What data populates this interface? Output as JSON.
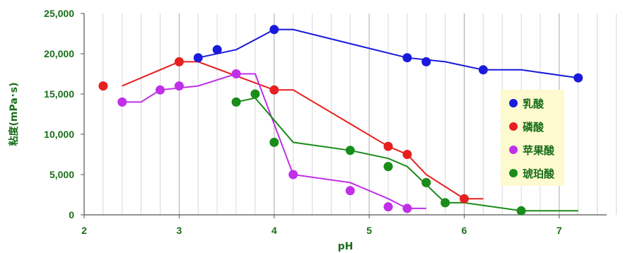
{
  "chart_data": {
    "type": "scatter",
    "xlabel": "pH",
    "ylabel": "粘度(mPa･s)",
    "xlim": [
      2,
      7.5
    ],
    "ylim": [
      0,
      25000
    ],
    "x_ticks": [
      "2",
      "3",
      "4",
      "5",
      "6",
      "7"
    ],
    "y_ticks": [
      "0",
      "5,000",
      "10,000",
      "15,000",
      "20,000",
      "25,000"
    ],
    "grid": "vertical",
    "legend_position": "right",
    "series": [
      {
        "name": "乳酸",
        "color": "#1a1adc",
        "points": [
          [
            3.2,
            19500
          ],
          [
            3.4,
            20500
          ],
          [
            4.0,
            23000
          ],
          [
            5.4,
            19500
          ],
          [
            5.6,
            19000
          ],
          [
            6.2,
            18000
          ],
          [
            7.2,
            17000
          ]
        ],
        "line": [
          [
            3.2,
            19500
          ],
          [
            3.6,
            20500
          ],
          [
            4.0,
            23000
          ],
          [
            4.2,
            23000
          ],
          [
            5.4,
            19500
          ],
          [
            5.8,
            19000
          ],
          [
            6.2,
            18000
          ],
          [
            6.6,
            18000
          ],
          [
            7.2,
            17000
          ]
        ]
      },
      {
        "name": "磷酸",
        "color": "#e62020",
        "points": [
          [
            2.2,
            16000
          ],
          [
            3.0,
            19000
          ],
          [
            4.0,
            15500
          ],
          [
            5.2,
            8500
          ],
          [
            5.4,
            7500
          ],
          [
            5.6,
            4000
          ],
          [
            6.0,
            2000
          ]
        ],
        "line": [
          [
            2.4,
            16000
          ],
          [
            3.0,
            19000
          ],
          [
            3.2,
            19000
          ],
          [
            4.0,
            15500
          ],
          [
            4.2,
            15500
          ],
          [
            5.2,
            8500
          ],
          [
            5.4,
            7500
          ],
          [
            5.6,
            5000
          ],
          [
            6.0,
            2000
          ],
          [
            6.2,
            2000
          ]
        ]
      },
      {
        "name": "苹果酸",
        "color": "#c030e8",
        "points": [
          [
            2.4,
            14000
          ],
          [
            2.8,
            15500
          ],
          [
            3.0,
            16000
          ],
          [
            3.6,
            17500
          ],
          [
            4.2,
            5000
          ],
          [
            4.8,
            3000
          ],
          [
            5.2,
            1000
          ],
          [
            5.4,
            800
          ]
        ],
        "line": [
          [
            2.4,
            14000
          ],
          [
            2.6,
            14000
          ],
          [
            2.8,
            15500
          ],
          [
            3.2,
            16000
          ],
          [
            3.6,
            17500
          ],
          [
            3.8,
            17500
          ],
          [
            4.2,
            5000
          ],
          [
            4.8,
            4000
          ],
          [
            5.2,
            2000
          ],
          [
            5.4,
            800
          ],
          [
            5.6,
            800
          ]
        ]
      },
      {
        "name": "琥珀酸",
        "color": "#1a8c1a",
        "points": [
          [
            3.6,
            14000
          ],
          [
            3.8,
            15000
          ],
          [
            4.0,
            9000
          ],
          [
            4.8,
            8000
          ],
          [
            5.2,
            6000
          ],
          [
            5.6,
            4000
          ],
          [
            5.8,
            1500
          ],
          [
            6.6,
            500
          ]
        ],
        "line": [
          [
            3.6,
            14000
          ],
          [
            3.8,
            14500
          ],
          [
            4.2,
            9000
          ],
          [
            4.8,
            8000
          ],
          [
            5.2,
            7000
          ],
          [
            5.4,
            6000
          ],
          [
            5.8,
            1500
          ],
          [
            6.0,
            1500
          ],
          [
            6.6,
            500
          ],
          [
            7.2,
            500
          ]
        ]
      }
    ]
  }
}
